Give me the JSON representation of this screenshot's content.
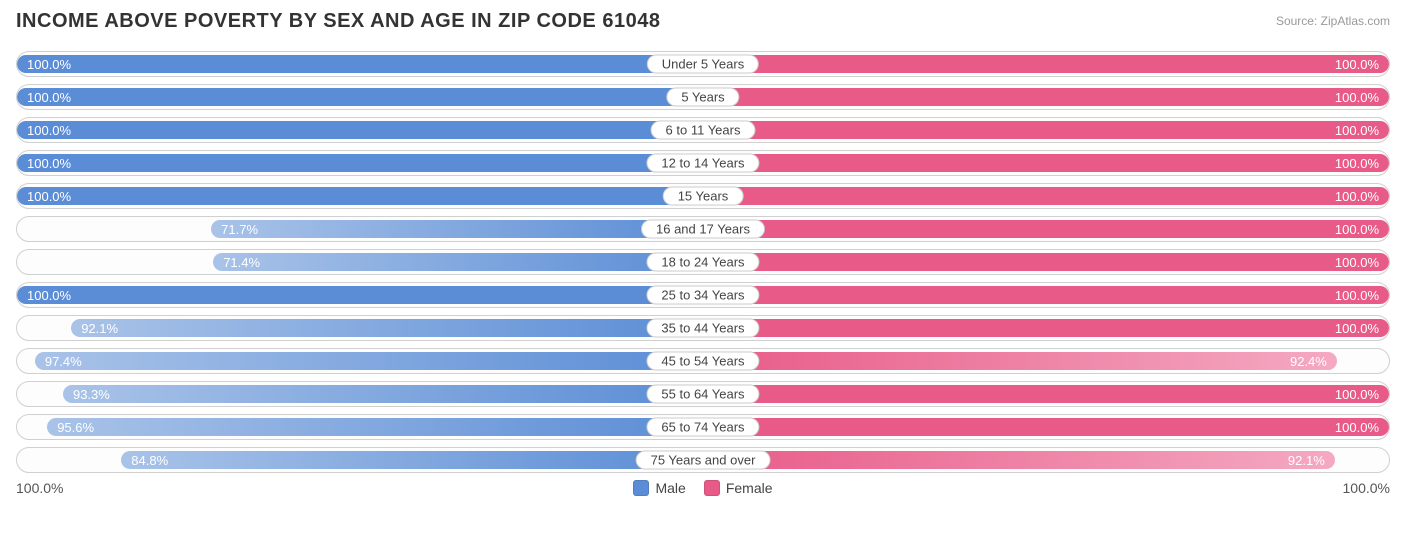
{
  "title": "INCOME ABOVE POVERTY BY SEX AND AGE IN ZIP CODE 61048",
  "source": "Source: ZipAtlas.com",
  "chart": {
    "type": "diverging-bar",
    "male_color": "#5b8dd6",
    "male_color_light": "#a9c3e8",
    "female_color": "#e85b89",
    "female_color_light": "#f4a9c2",
    "track_bg": "#fdfdfd",
    "track_border": "#d0d0d0",
    "bar_label_color": "#ffffff",
    "cat_label_bg": "#ffffff",
    "cat_label_border": "#cccccc",
    "axis_max": 100.0,
    "rows": [
      {
        "category": "Under 5 Years",
        "male": 100.0,
        "female": 100.0
      },
      {
        "category": "5 Years",
        "male": 100.0,
        "female": 100.0
      },
      {
        "category": "6 to 11 Years",
        "male": 100.0,
        "female": 100.0
      },
      {
        "category": "12 to 14 Years",
        "male": 100.0,
        "female": 100.0
      },
      {
        "category": "15 Years",
        "male": 100.0,
        "female": 100.0
      },
      {
        "category": "16 and 17 Years",
        "male": 71.7,
        "female": 100.0
      },
      {
        "category": "18 to 24 Years",
        "male": 71.4,
        "female": 100.0
      },
      {
        "category": "25 to 34 Years",
        "male": 100.0,
        "female": 100.0
      },
      {
        "category": "35 to 44 Years",
        "male": 92.1,
        "female": 100.0
      },
      {
        "category": "45 to 54 Years",
        "male": 97.4,
        "female": 92.4
      },
      {
        "category": "55 to 64 Years",
        "male": 93.3,
        "female": 100.0
      },
      {
        "category": "65 to 74 Years",
        "male": 95.6,
        "female": 100.0
      },
      {
        "category": "75 Years and over",
        "male": 84.8,
        "female": 92.1
      }
    ]
  },
  "footer": {
    "left_axis": "100.0%",
    "right_axis": "100.0%",
    "legend": {
      "male": "Male",
      "female": "Female"
    }
  }
}
